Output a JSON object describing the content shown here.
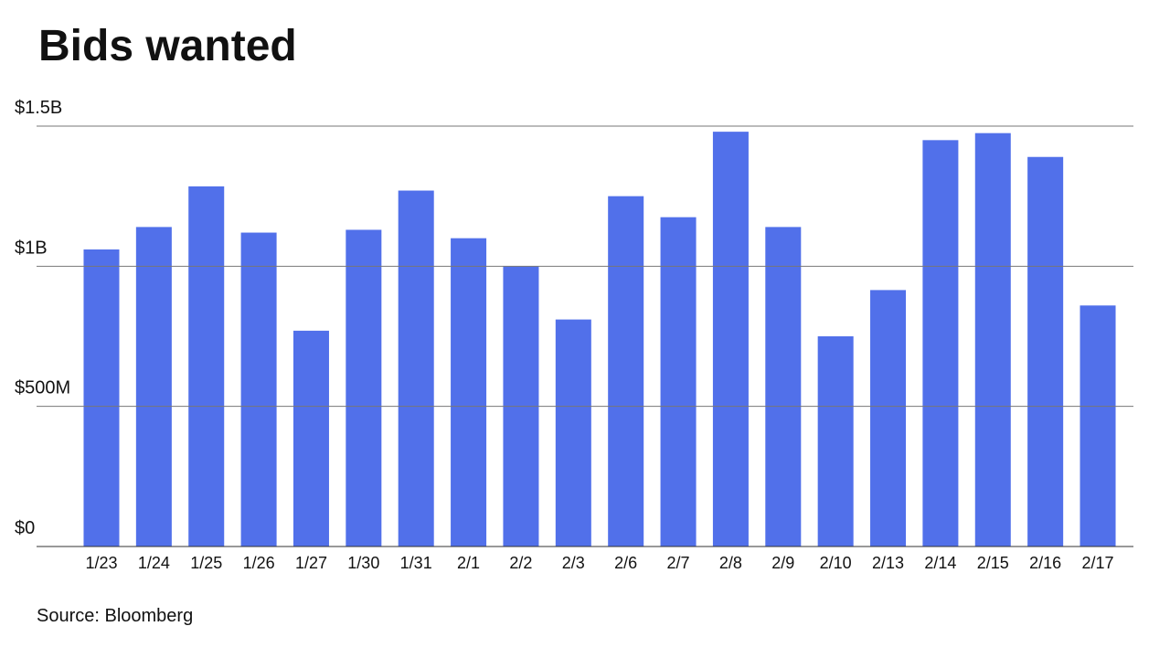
{
  "chart_data": {
    "type": "bar",
    "title": "Bids wanted",
    "source": "Source: Bloomberg",
    "categories": [
      "1/23",
      "1/24",
      "1/25",
      "1/26",
      "1/27",
      "1/30",
      "1/31",
      "2/1",
      "2/2",
      "2/3",
      "2/6",
      "2/7",
      "2/8",
      "2/9",
      "2/10",
      "2/13",
      "2/14",
      "2/15",
      "2/16",
      "2/17"
    ],
    "values": [
      1060000000,
      1140000000,
      1285000000,
      1120000000,
      770000000,
      1130000000,
      1270000000,
      1100000000,
      1000000000,
      810000000,
      1250000000,
      1175000000,
      1480000000,
      1140000000,
      750000000,
      915000000,
      1450000000,
      1475000000,
      1390000000,
      860000000
    ],
    "color": "#5170ea",
    "ylim": [
      0,
      1500000000
    ],
    "yticks": [
      {
        "value": 0,
        "label": "$0"
      },
      {
        "value": 500000000,
        "label": "$500M"
      },
      {
        "value": 1000000000,
        "label": "$1B"
      },
      {
        "value": 1500000000,
        "label": "$1.5B"
      }
    ],
    "grid": true
  }
}
